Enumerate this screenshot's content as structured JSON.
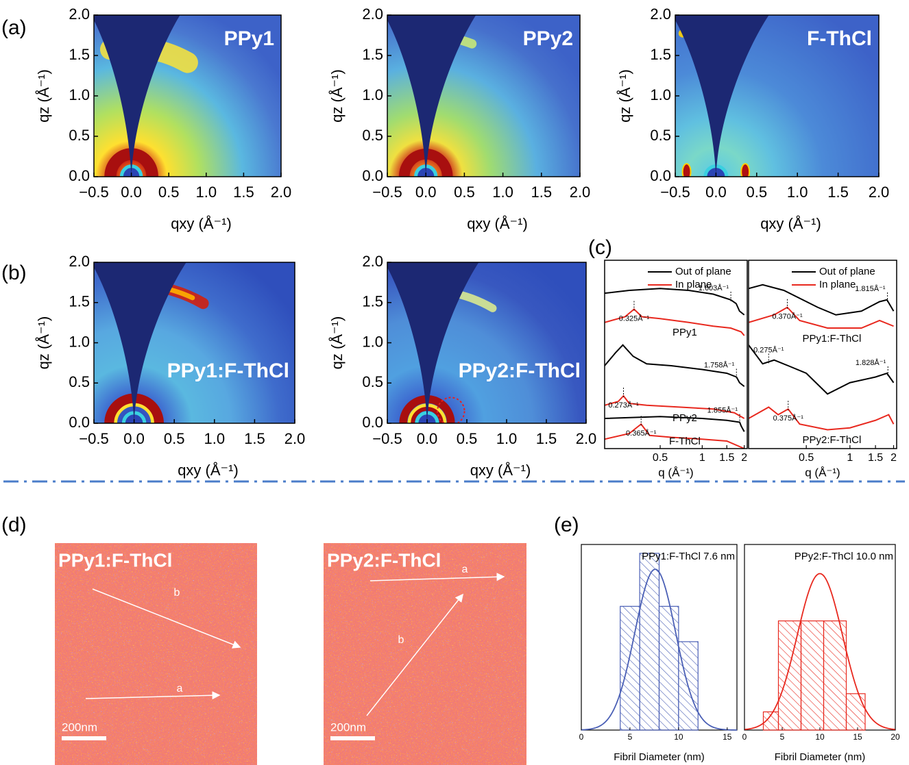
{
  "panels": [
    "(a)",
    "(b)",
    "(c)",
    "(d)",
    "(e)"
  ],
  "chart_data": [
    {
      "type": "map",
      "label": "PPy1",
      "xlabel": "qxy (Å⁻¹)",
      "ylabel": "qz (Å⁻¹)",
      "xlim": [
        -0.5,
        2.0
      ],
      "ylim": [
        0,
        2.0
      ],
      "xticks": [
        {
          "value": -0.5,
          "label": "−0.5"
        },
        {
          "value": 0,
          "label": "0.0"
        },
        {
          "value": 0.5,
          "label": "0.5"
        },
        {
          "value": 1,
          "label": "1.0"
        },
        {
          "value": 1.5,
          "label": "1.5"
        },
        {
          "value": 2,
          "label": "2.0"
        }
      ],
      "yticks": [
        {
          "value": 0,
          "label": "0.0"
        },
        {
          "value": 0.5,
          "label": "0.5"
        },
        {
          "value": 1,
          "label": "1.0"
        },
        {
          "value": 1.5,
          "label": "1.5"
        },
        {
          "value": 2,
          "label": "2.0"
        }
      ]
    },
    {
      "type": "map",
      "label": "PPy2",
      "xlabel": "qxy (Å⁻¹)",
      "ylabel": "qz (Å⁻¹)",
      "xlim": [
        -0.5,
        2.0
      ],
      "ylim": [
        0,
        2.0
      ],
      "xticks": [
        {
          "value": -0.5,
          "label": "−0.5"
        },
        {
          "value": 0,
          "label": "0.0"
        },
        {
          "value": 0.5,
          "label": "0.5"
        },
        {
          "value": 1,
          "label": "1.0"
        },
        {
          "value": 1.5,
          "label": "1.5"
        },
        {
          "value": 2,
          "label": "2.0"
        }
      ],
      "yticks": [
        {
          "value": 0,
          "label": "0.0"
        },
        {
          "value": 0.5,
          "label": "0.5"
        },
        {
          "value": 1,
          "label": "1.0"
        },
        {
          "value": 1.5,
          "label": "1.5"
        },
        {
          "value": 2,
          "label": "2.0"
        }
      ]
    },
    {
      "type": "map",
      "label": "F-ThCl",
      "xlabel": "qxy (Å⁻¹)",
      "ylabel": "qz (Å⁻¹)",
      "xlim": [
        -0.5,
        2.0
      ],
      "ylim": [
        0,
        2.0
      ],
      "xticks": [
        {
          "value": -0.5,
          "label": "−0.5"
        },
        {
          "value": 0,
          "label": "0.0"
        },
        {
          "value": 0.5,
          "label": "0.5"
        },
        {
          "value": 1,
          "label": "1.0"
        },
        {
          "value": 1.5,
          "label": "1.5"
        },
        {
          "value": 2,
          "label": "2.0"
        }
      ],
      "yticks": [
        {
          "value": 0,
          "label": "0.0"
        },
        {
          "value": 0.5,
          "label": "0.5"
        },
        {
          "value": 1,
          "label": "1.0"
        },
        {
          "value": 1.5,
          "label": "1.5"
        },
        {
          "value": 2,
          "label": "2.0"
        }
      ]
    },
    {
      "type": "map",
      "label": "PPy1:F-ThCl",
      "xlabel": "qxy (Å⁻¹)",
      "ylabel": "qz (Å⁻¹)",
      "xlim": [
        -0.5,
        2.0
      ],
      "ylim": [
        0,
        2.0
      ],
      "xticks": [
        {
          "value": -0.5,
          "label": "−0.5"
        },
        {
          "value": 0,
          "label": "0.0"
        },
        {
          "value": 0.5,
          "label": "0.5"
        },
        {
          "value": 1,
          "label": "1.0"
        },
        {
          "value": 1.5,
          "label": "1.5"
        },
        {
          "value": 2,
          "label": "2.0"
        }
      ],
      "yticks": [
        {
          "value": 0,
          "label": "0.0"
        },
        {
          "value": 0.5,
          "label": "0.5"
        },
        {
          "value": 1,
          "label": "1.0"
        },
        {
          "value": 1.5,
          "label": "1.5"
        },
        {
          "value": 2,
          "label": "2.0"
        }
      ]
    },
    {
      "type": "map",
      "label": "PPy2:F-ThCl",
      "xlabel": "qxy (Å⁻¹)",
      "ylabel": "qz (Å⁻¹)",
      "xlim": [
        -0.5,
        2.0
      ],
      "ylim": [
        0,
        2.0
      ],
      "xticks": [
        {
          "value": -0.5,
          "label": "−0.5"
        },
        {
          "value": 0,
          "label": "0.0"
        },
        {
          "value": 0.5,
          "label": "0.5"
        },
        {
          "value": 1,
          "label": "1.0"
        },
        {
          "value": 1.5,
          "label": "1.5"
        },
        {
          "value": 2,
          "label": "2.0"
        }
      ],
      "yticks": [
        {
          "value": 0,
          "label": "0.0"
        },
        {
          "value": 0.5,
          "label": "0.5"
        },
        {
          "value": 1,
          "label": "1.0"
        },
        {
          "value": 1.5,
          "label": "1.5"
        },
        {
          "value": 2,
          "label": "2.0"
        }
      ]
    },
    {
      "type": "line",
      "log_x": true,
      "xlim": [
        0.2,
        2.1
      ],
      "ylim": [
        0,
        10
      ],
      "xticks": [
        0.5,
        1,
        1.5,
        2
      ],
      "xlabel": "q (Å⁻¹)",
      "legend": [
        {
          "name": "Out of plane",
          "color": "#000000"
        },
        {
          "name": "In plane",
          "color": "#e8281e"
        }
      ],
      "groups": [
        {
          "label": "PPy1",
          "out_of_plane": {
            "x": [
              0.2,
              0.3,
              0.5,
              0.8,
              1.2,
              1.6,
              1.75,
              1.85,
              2.0
            ],
            "values": [
              8.25,
              8.4,
              8.5,
              8.4,
              8.2,
              7.9,
              7.7,
              7.3,
              7.1
            ],
            "peaks": [
              {
                "value": 1.603,
                "label": "1.603Å⁻¹"
              }
            ]
          },
          "in_plane": {
            "x": [
              0.2,
              0.28,
              0.325,
              0.37,
              0.5,
              0.8,
              1.2,
              1.6,
              1.9,
              2.0
            ],
            "values": [
              6.7,
              7.0,
              7.4,
              7.0,
              6.9,
              6.7,
              6.5,
              6.4,
              6.2,
              6.0
            ],
            "peaks": [
              {
                "value": 0.325,
                "label": "0.325Å⁻¹"
              }
            ]
          }
        },
        {
          "label": "PPy2",
          "out_of_plane": {
            "x": [
              0.2,
              0.24,
              0.27,
              0.32,
              0.4,
              0.6,
              1.0,
              1.5,
              1.76,
              1.85,
              2.0
            ],
            "values": [
              4.4,
              5.1,
              5.5,
              4.9,
              4.5,
              4.4,
              4.2,
              4.0,
              3.8,
              3.5,
              3.3
            ],
            "peaks": [
              {
                "value": 1.758,
                "label": "1.758Å⁻¹"
              }
            ]
          },
          "in_plane": {
            "x": [
              0.2,
              0.25,
              0.273,
              0.3,
              0.4,
              0.7,
              1.2,
              1.7,
              2.0
            ],
            "values": [
              2.3,
              2.5,
              2.8,
              2.4,
              2.3,
              2.2,
              2.1,
              1.9,
              1.6
            ],
            "peaks": [
              {
                "value": 0.273,
                "label": "0.273Å⁻¹"
              }
            ]
          }
        },
        {
          "label": "F-ThCl",
          "out_of_plane": {
            "x": [
              0.2,
              0.5,
              1.0,
              1.5,
              1.855,
              1.9,
              2.0
            ],
            "values": [
              1.6,
              1.7,
              1.6,
              1.5,
              1.4,
              1.2,
              0.9
            ],
            "peaks": [
              {
                "value": 1.855,
                "label": "1.855Å⁻¹"
              }
            ]
          },
          "in_plane": {
            "x": [
              0.2,
              0.3,
              0.365,
              0.42,
              0.6,
              1.0,
              1.5,
              2.0
            ],
            "values": [
              0.5,
              0.8,
              1.3,
              0.7,
              0.6,
              0.5,
              0.4,
              0.0
            ],
            "peaks": [
              {
                "value": 0.365,
                "label": "0.365Å⁻¹"
              }
            ]
          }
        }
      ]
    },
    {
      "type": "line",
      "log_x": true,
      "xlim": [
        0.2,
        2.1
      ],
      "ylim": [
        0,
        10
      ],
      "xticks": [
        0.5,
        1,
        1.5,
        2
      ],
      "xlabel": "q (Å⁻¹)",
      "legend": [
        {
          "name": "Out of plane",
          "color": "#000000"
        },
        {
          "name": "In plane",
          "color": "#e8281e"
        }
      ],
      "groups": [
        {
          "label": "PPy1:F-ThCl",
          "out_of_plane": {
            "x": [
              0.2,
              0.25,
              0.35,
              0.6,
              0.8,
              1.2,
              1.6,
              1.8,
              2.0
            ],
            "values": [
              8.5,
              8.7,
              8.4,
              7.5,
              7.1,
              7.3,
              7.8,
              7.9,
              7.3
            ],
            "peaks": [
              {
                "value": 1.815,
                "label": "1.815Å⁻¹"
              }
            ]
          },
          "in_plane": {
            "x": [
              0.2,
              0.3,
              0.37,
              0.45,
              0.7,
              1.2,
              1.6,
              2.0
            ],
            "values": [
              6.7,
              7.1,
              7.5,
              6.8,
              6.4,
              6.4,
              6.8,
              6.5
            ],
            "peaks": [
              {
                "value": 0.37,
                "label": "0.370Å⁻¹"
              }
            ]
          }
        },
        {
          "label": "PPy2:F-ThCl",
          "out_of_plane": {
            "x": [
              0.2,
              0.25,
              0.3,
              0.375,
              0.5,
              0.7,
              1.0,
              1.5,
              1.8,
              2.0
            ],
            "values": [
              5.5,
              4.5,
              4.7,
              4.4,
              4.0,
              2.9,
              3.5,
              3.8,
              4.0,
              3.5
            ],
            "peaks": [
              {
                "value": 0.275,
                "label": "0.275Å⁻¹"
              },
              {
                "value": 1.828,
                "label": "1.828Å⁻¹"
              }
            ]
          },
          "in_plane": {
            "x": [
              0.2,
              0.275,
              0.32,
              0.375,
              0.45,
              0.7,
              1.0,
              1.5,
              1.85,
              2.0
            ],
            "values": [
              1.6,
              2.2,
              1.8,
              2.1,
              1.3,
              1.0,
              1.1,
              1.5,
              1.8,
              1.3
            ],
            "peaks": [
              {
                "value": 0.375,
                "label": "0.375Å⁻¹"
              }
            ]
          }
        }
      ]
    },
    {
      "type": "image",
      "label": "PPy1:F-ThCl",
      "arrows": [
        {
          "label": "b"
        },
        {
          "label": "a"
        }
      ],
      "scale_bar": "200nm"
    },
    {
      "type": "image",
      "label": "PPy2:F-ThCl",
      "arrows": [
        {
          "label": "a"
        },
        {
          "label": "b"
        }
      ],
      "scale_bar": "200nm"
    },
    {
      "type": "histogram",
      "title": "PPy1:F-ThCl 7.6 nm",
      "xlabel": "Fibril Diameter (nm)",
      "color": "#4a5fb5",
      "bins": [
        4,
        6,
        8,
        10,
        12
      ],
      "counts": [
        7,
        10,
        7,
        5
      ],
      "fit": {
        "mean": 7.6,
        "sd": 2.1,
        "peak": 9.1
      },
      "xlim": [
        0,
        16
      ],
      "xticks": [
        0,
        5,
        10,
        15
      ],
      "ylim": [
        0,
        10.5
      ]
    },
    {
      "type": "histogram",
      "title": "PPy2:F-ThCl 10.0 nm",
      "xlabel": "Fibril Diameter (nm)",
      "color": "#e8281e",
      "bins": [
        2.5,
        4.5,
        7.5,
        10.5,
        13.5,
        16
      ],
      "counts": [
        1,
        6,
        6,
        6,
        2
      ],
      "fit": {
        "mean": 10.0,
        "sd": 3.0,
        "peak": 8.6
      },
      "xlim": [
        0,
        20
      ],
      "xticks": [
        0,
        5,
        10,
        15,
        20
      ],
      "ylim": [
        0,
        10.2
      ]
    }
  ]
}
